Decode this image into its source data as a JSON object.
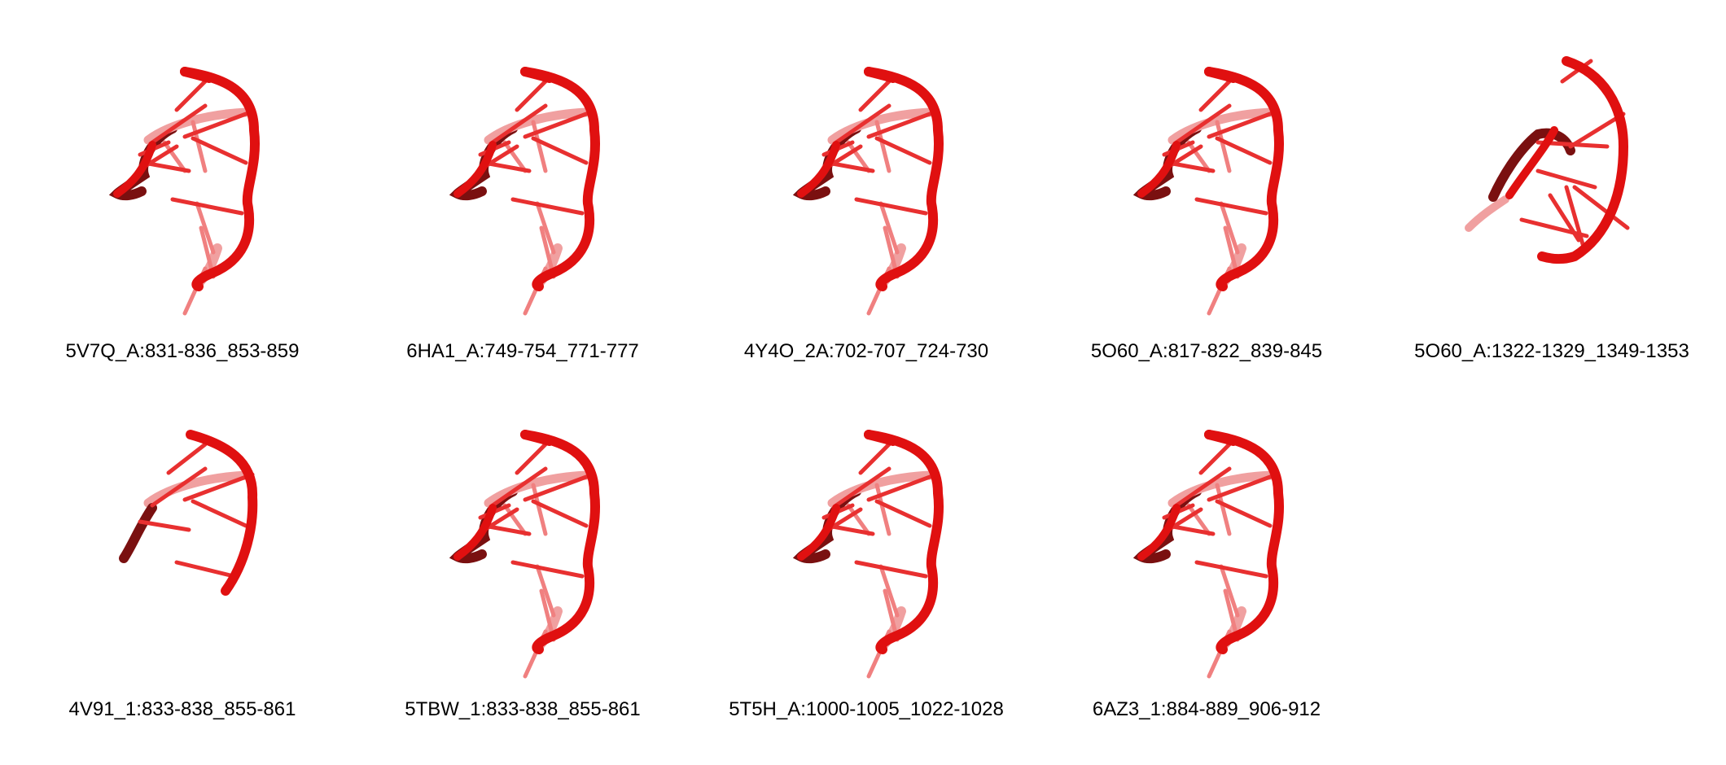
{
  "panels": [
    {
      "label": "5V7Q_A:831-836_853-859",
      "variant": "full"
    },
    {
      "label": "6HA1_A:749-754_771-777",
      "variant": "full"
    },
    {
      "label": "4Y4O_2A:702-707_724-730",
      "variant": "full"
    },
    {
      "label": "5O60_A:817-822_839-845",
      "variant": "full"
    },
    {
      "label": "5O60_A:1322-1329_1349-1353",
      "variant": "extended"
    },
    {
      "label": "4V91_1:833-838_855-861",
      "variant": "short"
    },
    {
      "label": "5TBW_1:833-838_855-861",
      "variant": "full"
    },
    {
      "label": "5T5H_A:1000-1005_1022-1028",
      "variant": "full"
    },
    {
      "label": "6AZ3_1:884-889_906-912",
      "variant": "full"
    }
  ],
  "colors": {
    "backbone": "#e01010",
    "backbone_dark": "#7a1010",
    "backbone_light": "#f0a0a0",
    "base": "#e83030",
    "base_light": "#f08080"
  }
}
